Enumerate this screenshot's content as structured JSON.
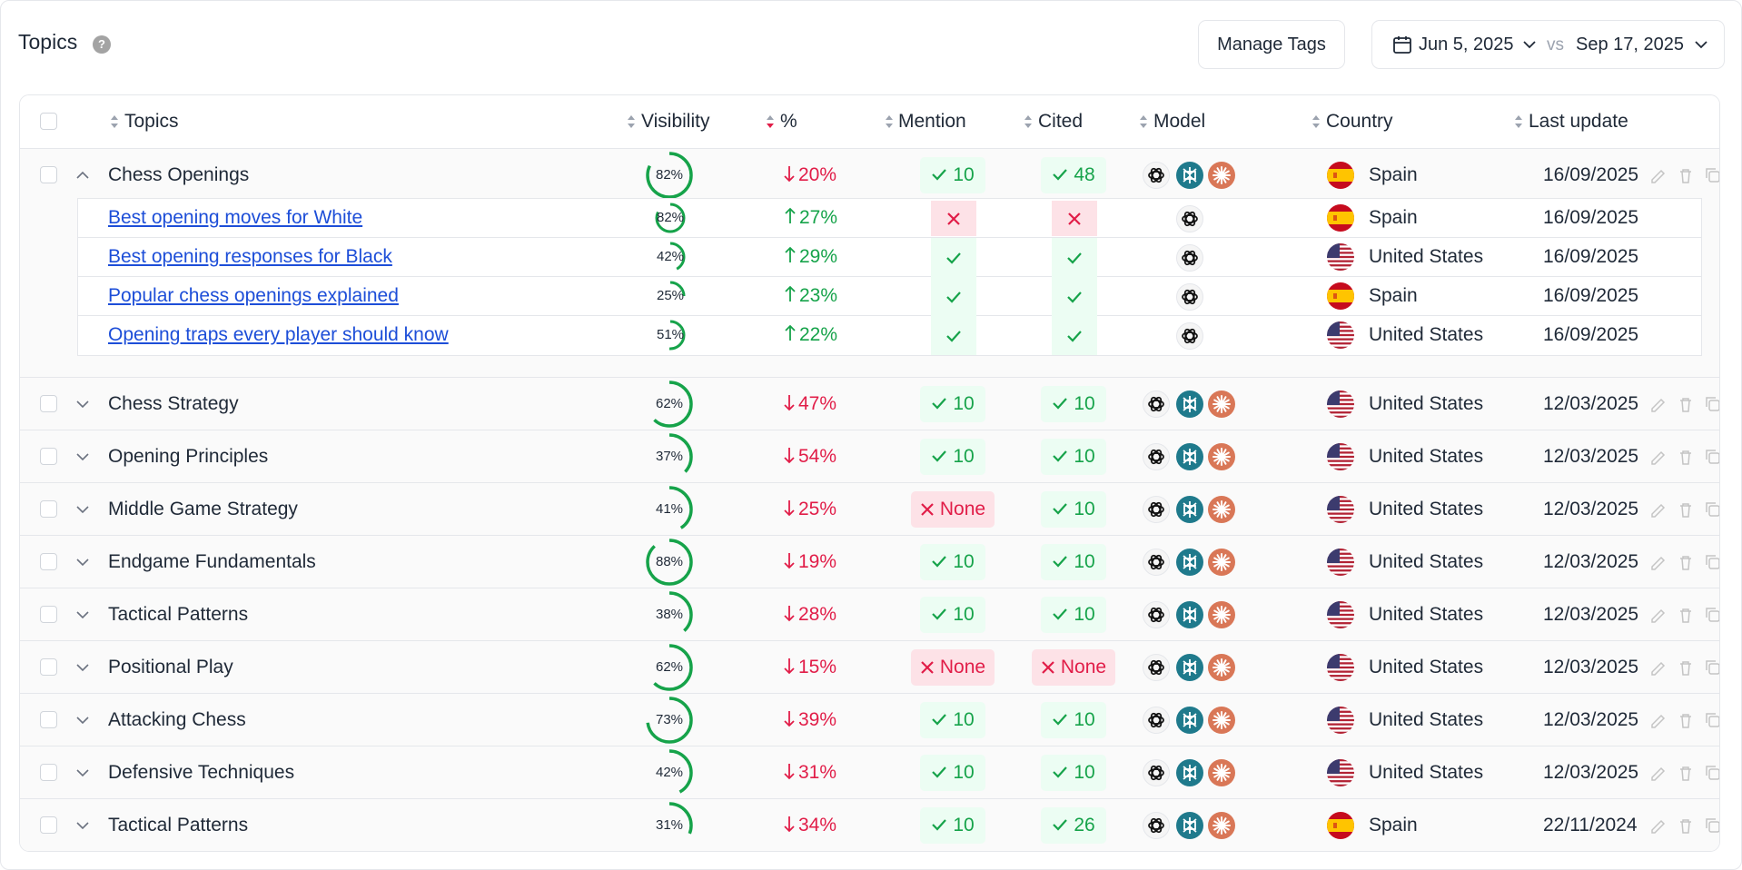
{
  "header": {
    "title": "Topics",
    "help_icon": "?",
    "manage_tags": "Manage Tags",
    "date_from": "Jun 5, 2025",
    "vs": "vs",
    "date_to": "Sep 17, 2025"
  },
  "columns": {
    "topics": "Topics",
    "visibility": "Visibility",
    "pct": "%",
    "mention": "Mention",
    "cited": "Cited",
    "model": "Model",
    "country": "Country",
    "last_update": "Last update"
  },
  "colors": {
    "green": "#16a34a",
    "red": "#e11d48",
    "link": "#1d4ed8"
  },
  "rows": [
    {
      "name": "Chess Openings",
      "visibility": "82%",
      "vis": 0.82,
      "pct": "20%",
      "dir": "down",
      "mention": "10",
      "mention_ok": true,
      "cited": "48",
      "cited_ok": true,
      "country": "Spain",
      "flag": "es",
      "date": "16/09/2025",
      "expanded": true
    },
    {
      "name": "Chess Strategy",
      "visibility": "62%",
      "vis": 0.62,
      "pct": "47%",
      "dir": "down",
      "mention": "10",
      "mention_ok": true,
      "cited": "10",
      "cited_ok": true,
      "country": "United States",
      "flag": "us",
      "date": "12/03/2025"
    },
    {
      "name": "Opening Principles",
      "visibility": "37%",
      "vis": 0.37,
      "pct": "54%",
      "dir": "down",
      "mention": "10",
      "mention_ok": true,
      "cited": "10",
      "cited_ok": true,
      "country": "United States",
      "flag": "us",
      "date": "12/03/2025"
    },
    {
      "name": "Middle Game Strategy",
      "visibility": "41%",
      "vis": 0.41,
      "pct": "25%",
      "dir": "down",
      "mention": "None",
      "mention_ok": false,
      "cited": "10",
      "cited_ok": true,
      "country": "United States",
      "flag": "us",
      "date": "12/03/2025"
    },
    {
      "name": "Endgame Fundamentals",
      "visibility": "88%",
      "vis": 0.88,
      "pct": "19%",
      "dir": "down",
      "mention": "10",
      "mention_ok": true,
      "cited": "10",
      "cited_ok": true,
      "country": "United States",
      "flag": "us",
      "date": "12/03/2025"
    },
    {
      "name": "Tactical Patterns",
      "visibility": "38%",
      "vis": 0.38,
      "pct": "28%",
      "dir": "down",
      "mention": "10",
      "mention_ok": true,
      "cited": "10",
      "cited_ok": true,
      "country": "United States",
      "flag": "us",
      "date": "12/03/2025"
    },
    {
      "name": "Positional Play",
      "visibility": "62%",
      "vis": 0.62,
      "pct": "15%",
      "dir": "down",
      "mention": "None",
      "mention_ok": false,
      "cited": "None",
      "cited_ok": false,
      "country": "United States",
      "flag": "us",
      "date": "12/03/2025"
    },
    {
      "name": "Attacking Chess",
      "visibility": "73%",
      "vis": 0.73,
      "pct": "39%",
      "dir": "down",
      "mention": "10",
      "mention_ok": true,
      "cited": "10",
      "cited_ok": true,
      "country": "United States",
      "flag": "us",
      "date": "12/03/2025"
    },
    {
      "name": "Defensive Techniques",
      "visibility": "42%",
      "vis": 0.42,
      "pct": "31%",
      "dir": "down",
      "mention": "10",
      "mention_ok": true,
      "cited": "10",
      "cited_ok": true,
      "country": "United States",
      "flag": "us",
      "date": "12/03/2025"
    },
    {
      "name": "Tactical Patterns",
      "visibility": "31%",
      "vis": 0.31,
      "pct": "34%",
      "dir": "down",
      "mention": "10",
      "mention_ok": true,
      "cited": "26",
      "cited_ok": true,
      "country": "Spain",
      "flag": "es",
      "date": "22/11/2024"
    }
  ],
  "subrows": [
    {
      "name": "Best opening moves for White",
      "visibility": "82%",
      "vis": 0.82,
      "pct": "27%",
      "dir": "up",
      "mention_ok": false,
      "cited_ok": false,
      "country": "Spain",
      "flag": "es",
      "date": "16/09/2025"
    },
    {
      "name": "Best opening responses for Black",
      "visibility": "42%",
      "vis": 0.42,
      "pct": "29%",
      "dir": "up",
      "mention_ok": true,
      "cited_ok": true,
      "country": "United States",
      "flag": "us",
      "date": "16/09/2025"
    },
    {
      "name": "Popular chess openings explained",
      "visibility": "25%",
      "vis": 0.25,
      "pct": "23%",
      "dir": "up",
      "mention_ok": true,
      "cited_ok": true,
      "country": "Spain",
      "flag": "es",
      "date": "16/09/2025"
    },
    {
      "name": "Opening traps every player should know",
      "visibility": "51%",
      "vis": 0.51,
      "pct": "22%",
      "dir": "up",
      "mention_ok": true,
      "cited_ok": true,
      "country": "United States",
      "flag": "us",
      "date": "16/09/2025"
    }
  ]
}
